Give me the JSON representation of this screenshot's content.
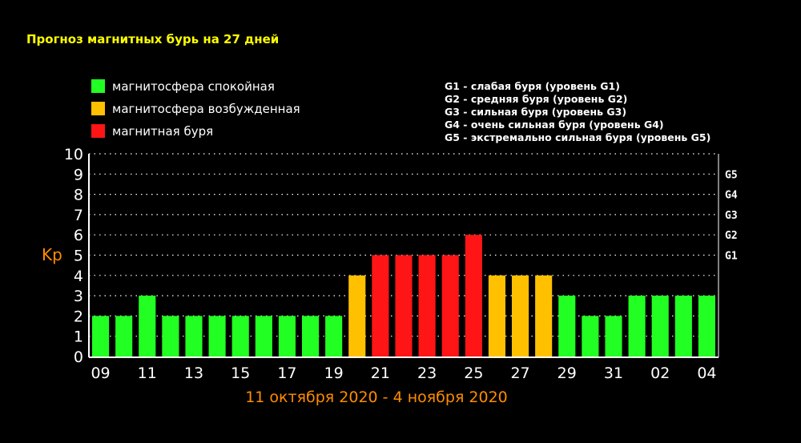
{
  "chart_data": {
    "type": "bar",
    "title": "Прогноз магнитных бурь на 27 дней",
    "xlabel": "11 октября 2020 - 4 ноября 2020",
    "ylabel": "Kp",
    "ylim": [
      0,
      10
    ],
    "y_ticks": [
      "0",
      "1",
      "2",
      "3",
      "4",
      "5",
      "6",
      "7",
      "8",
      "9",
      "10"
    ],
    "x_tick_labels": [
      "09",
      "11",
      "13",
      "15",
      "17",
      "19",
      "21",
      "23",
      "25",
      "27",
      "29",
      "31",
      "02",
      "04"
    ],
    "values": [
      2,
      2,
      3,
      2,
      2,
      2,
      2,
      2,
      2,
      2,
      2,
      4,
      5,
      5,
      5,
      5,
      6,
      4,
      4,
      4,
      3,
      2,
      2,
      3,
      3,
      3,
      3
    ],
    "levels": [
      "quiet",
      "quiet",
      "quiet",
      "quiet",
      "quiet",
      "quiet",
      "quiet",
      "quiet",
      "quiet",
      "quiet",
      "quiet",
      "excited",
      "storm",
      "storm",
      "storm",
      "storm",
      "storm",
      "excited",
      "excited",
      "excited",
      "quiet",
      "quiet",
      "quiet",
      "quiet",
      "quiet",
      "quiet",
      "quiet"
    ],
    "colors": {
      "quiet": "#22ff22",
      "excited": "#ffc000",
      "storm": "#ff1515",
      "grid": "#ffffff",
      "axis_label": "#ff8c00",
      "title": "#ffff00"
    },
    "legend": [
      {
        "label": "магнитосфера спокойная",
        "level": "quiet"
      },
      {
        "label": "магнитосфера возбужденная",
        "level": "excited"
      },
      {
        "label": "магнитная буря",
        "level": "storm"
      }
    ],
    "storm_scale_legend": [
      "G1 - слабая буря (уровень G1)",
      "G2 - средняя буря (уровень G2)",
      "G3 - сильная буря (уровень G3)",
      "G4 - очень сильная буря (уровень G4)",
      "G5 - экстремально сильная буря (уровень G5)"
    ],
    "g_levels": [
      {
        "label": "G1",
        "kp": 5
      },
      {
        "label": "G2",
        "kp": 6
      },
      {
        "label": "G3",
        "kp": 7
      },
      {
        "label": "G4",
        "kp": 8
      },
      {
        "label": "G5",
        "kp": 9
      }
    ],
    "grid": true
  }
}
